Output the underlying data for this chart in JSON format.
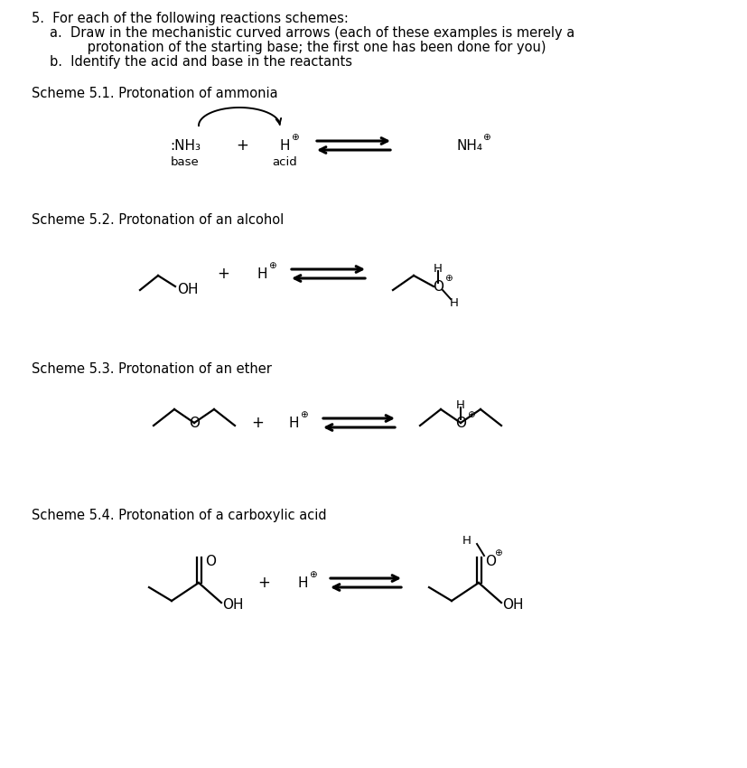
{
  "bg_color": "#ffffff",
  "text_color": "#000000",
  "title_text": "5.  For each of the following reactions schemes:",
  "subtitle_a": "a.  Draw in the mechanistic curved arrows (each of these examples is merely a",
  "subtitle_a2": "         protonation of the starting base; the first one has been done for you)",
  "subtitle_b": "b.  Identify the acid and base in the reactants",
  "scheme1_title": "Scheme 5.1. Protonation of ammonia",
  "scheme2_title": "Scheme 5.2. Protonation of an alcohol",
  "scheme3_title": "Scheme 5.3. Protonation of an ether",
  "scheme4_title": "Scheme 5.4. Protonation of a carboxylic acid",
  "font_size_main": 10.5,
  "font_size_chem": 11,
  "font_size_sub": 9
}
